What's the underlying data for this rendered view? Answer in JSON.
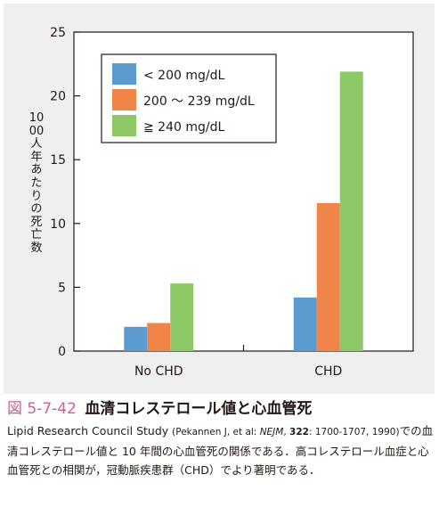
{
  "chart_data": {
    "type": "bar",
    "categories": [
      "No CHD",
      "CHD"
    ],
    "series": [
      {
        "name": "< 200 mg/dL",
        "color": "#5b9bd0",
        "values": [
          1.9,
          4.2
        ]
      },
      {
        "name": "200 〜 239 mg/dL",
        "color": "#f08549",
        "values": [
          2.2,
          11.6
        ]
      },
      {
        "name": "≧ 240 mg/dL",
        "color": "#8cc865",
        "values": [
          5.3,
          21.9
        ]
      }
    ],
    "ylabel": "1000人年あたりの死亡数",
    "xlabel": "",
    "ylim": [
      0,
      25
    ],
    "yticks": [
      0,
      5,
      10,
      15,
      20,
      25
    ],
    "legend_position": "top-left",
    "grid": false
  },
  "caption": {
    "figure_number": "図 5-7-42",
    "figure_title": "血清コレステロール値と心血管死",
    "study": "Lipid Research Council Study",
    "ref_open": "(Pekannen J, et al: ",
    "ref_journal": "NEJM",
    "ref_sep": ", ",
    "ref_volume": "322",
    "ref_pages": ": 1700-1707, 1990)",
    "text": "での血清コレステロール値と 10 年間の心血管死の関係である．高コレステロール血症と心血管死との相関が，冠動脈疾患群（CHD）でより著明である．"
  }
}
